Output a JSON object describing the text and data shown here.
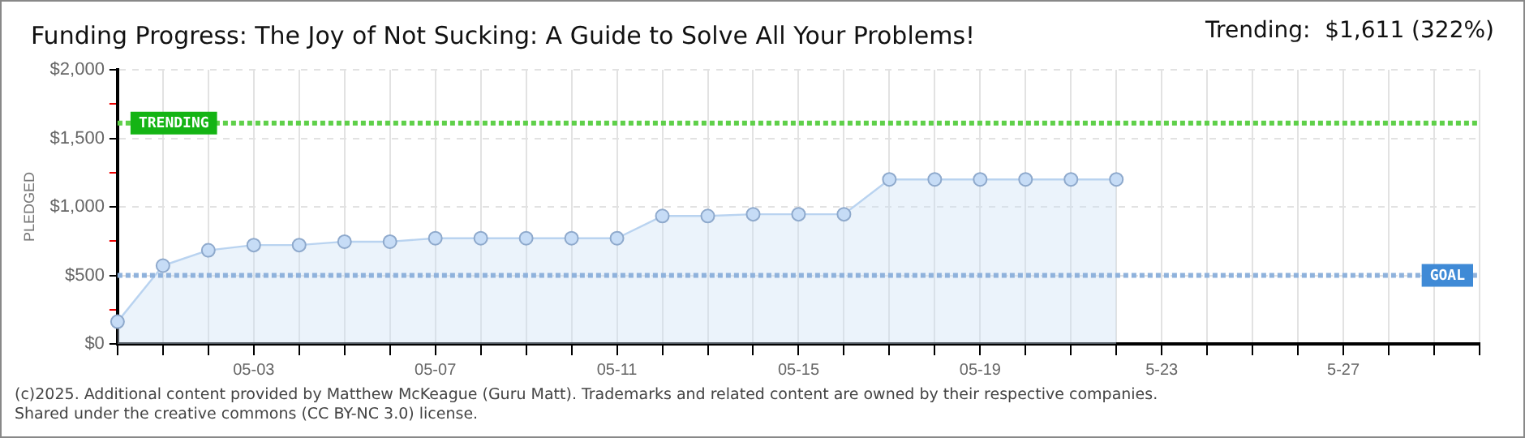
{
  "chart_data": {
    "type": "area",
    "title": "Funding Progress: The Joy of Not Sucking: A Guide to Solve All Your Problems!",
    "subtitle": "Trending:  $1,611 (322%)",
    "ylabel": "PLEDGED",
    "categories": [
      null,
      null,
      null,
      "05-03",
      null,
      null,
      null,
      "05-07",
      null,
      null,
      null,
      "05-11",
      null,
      null,
      null,
      "05-15",
      null,
      null,
      null,
      "05-19",
      null,
      null,
      null,
      "5-23",
      null,
      null,
      null,
      "5-27",
      null,
      null,
      null
    ],
    "series": [
      {
        "color": "#b9d3f0",
        "values": [
          162,
          571,
          683,
          721,
          721,
          746,
          746,
          771,
          771,
          771,
          771,
          771,
          933,
          933,
          946,
          946,
          946,
          1200,
          1200,
          1200,
          1200,
          1200,
          1200,
          null,
          null,
          null,
          null,
          null,
          null,
          null,
          null
        ]
      }
    ],
    "ylim": [
      0,
      2000
    ],
    "yticks": [
      {
        "value": 0,
        "label": "$0"
      },
      {
        "value": 250,
        "label": null
      },
      {
        "value": 500,
        "label": "$500"
      },
      {
        "value": 750,
        "label": null
      },
      {
        "value": 1000,
        "label": "$1,000"
      },
      {
        "value": 1250,
        "label": null
      },
      {
        "value": 1500,
        "label": "$1,500"
      },
      {
        "value": 1750,
        "label": null
      },
      {
        "value": 2000,
        "label": "$2,000"
      }
    ],
    "ref_lines": [
      {
        "axis": "y",
        "value": 1611,
        "label": "TRENDING",
        "color": "#5fd04a",
        "line_style": "dotted"
      },
      {
        "axis": "y",
        "value": 500,
        "label": "GOAL",
        "color": "#8fb2dc",
        "line_style": "dotted"
      }
    ],
    "grid": true,
    "legend": false,
    "marker": "circle",
    "annotations": [
      "(c)2025. Additional content provided by Matthew McKeague (Guru Matt). Trademarks and related content are owned by their respective companies.",
      "Shared under the creative commons (CC BY-NC 3.0) license."
    ]
  }
}
